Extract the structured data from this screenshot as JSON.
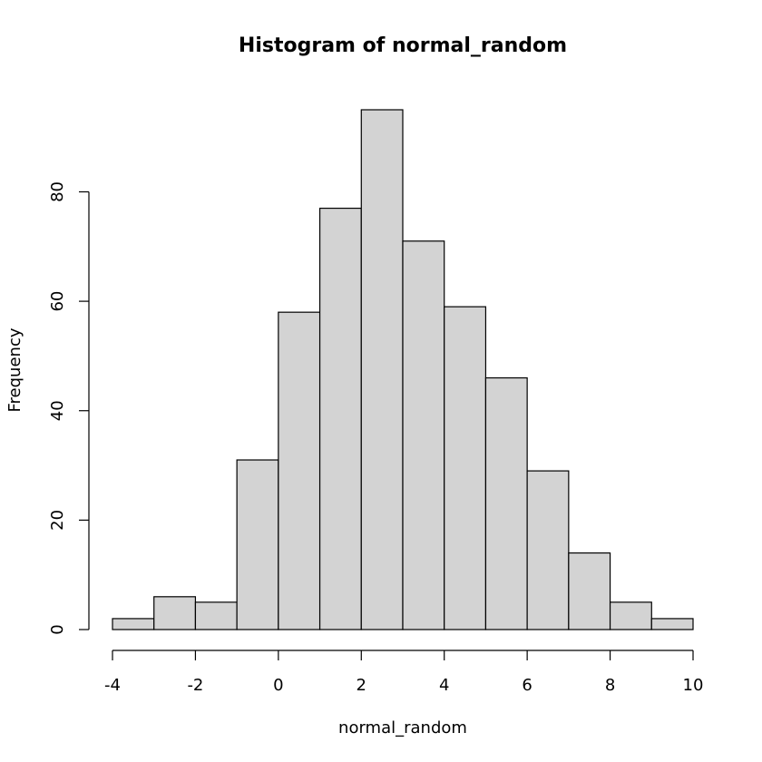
{
  "chart_data": {
    "type": "bar",
    "title": "Histogram of normal_random",
    "xlabel": "normal_random",
    "ylabel": "Frequency",
    "bins": [
      {
        "start": -4,
        "end": -3,
        "count": 2
      },
      {
        "start": -3,
        "end": -2,
        "count": 6
      },
      {
        "start": -2,
        "end": -1,
        "count": 5
      },
      {
        "start": -1,
        "end": 0,
        "count": 31
      },
      {
        "start": 0,
        "end": 1,
        "count": 58
      },
      {
        "start": 1,
        "end": 2,
        "count": 77
      },
      {
        "start": 2,
        "end": 3,
        "count": 95
      },
      {
        "start": 3,
        "end": 4,
        "count": 71
      },
      {
        "start": 4,
        "end": 5,
        "count": 59
      },
      {
        "start": 5,
        "end": 6,
        "count": 46
      },
      {
        "start": 6,
        "end": 7,
        "count": 29
      },
      {
        "start": 7,
        "end": 8,
        "count": 14
      },
      {
        "start": 8,
        "end": 9,
        "count": 5
      },
      {
        "start": 9,
        "end": 10,
        "count": 2
      }
    ],
    "xlim": [
      -4,
      10
    ],
    "ylim": [
      0,
      95
    ],
    "xticks": [
      -4,
      -2,
      0,
      2,
      4,
      6,
      8,
      10
    ],
    "xtick_labels": [
      "-4",
      "-2",
      "0",
      "2",
      "4",
      "6",
      "8",
      "10"
    ],
    "yticks": [
      0,
      20,
      40,
      60,
      80
    ],
    "ytick_labels": [
      "0",
      "20",
      "40",
      "60",
      "80"
    ],
    "grid": false,
    "legend": "none",
    "bar_fill": "#d3d3d3",
    "bar_stroke": "#000000",
    "background": "#ffffff"
  }
}
